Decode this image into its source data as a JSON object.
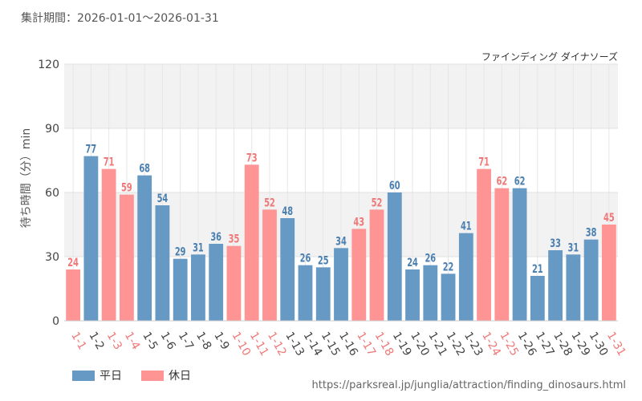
{
  "header": {
    "period_label": "集計期間：2026-01-01～2026-01-31"
  },
  "chart_data": {
    "type": "bar",
    "title": "ファインディング ダイナソーズ",
    "ylabel": "待ち時間（分）min",
    "xlabel": "",
    "ylim": [
      0,
      120
    ],
    "yticks": [
      0,
      30,
      60,
      90,
      120
    ],
    "categories": [
      "1-1",
      "1-2",
      "1-3",
      "1-4",
      "1-5",
      "1-6",
      "1-7",
      "1-8",
      "1-9",
      "1-10",
      "1-11",
      "1-12",
      "1-13",
      "1-14",
      "1-15",
      "1-16",
      "1-17",
      "1-18",
      "1-19",
      "1-20",
      "1-21",
      "1-22",
      "1-23",
      "1-24",
      "1-25",
      "1-26",
      "1-27",
      "1-28",
      "1-29",
      "1-30",
      "1-31"
    ],
    "values": [
      24,
      77,
      71,
      59,
      68,
      54,
      29,
      31,
      36,
      35,
      73,
      52,
      48,
      26,
      25,
      34,
      43,
      52,
      60,
      24,
      26,
      22,
      41,
      71,
      62,
      62,
      21,
      33,
      31,
      38,
      45
    ],
    "day_types": [
      "holiday",
      "weekday",
      "holiday",
      "holiday",
      "weekday",
      "weekday",
      "weekday",
      "weekday",
      "weekday",
      "holiday",
      "holiday",
      "holiday",
      "weekday",
      "weekday",
      "weekday",
      "weekday",
      "holiday",
      "holiday",
      "weekday",
      "weekday",
      "weekday",
      "weekday",
      "weekday",
      "holiday",
      "holiday",
      "weekday",
      "weekday",
      "weekday",
      "weekday",
      "weekday",
      "holiday"
    ],
    "series": [
      {
        "name": "平日",
        "color": "#6699c4"
      },
      {
        "name": "休日",
        "color": "#ff9494"
      }
    ],
    "legend_position": "bottom-left"
  },
  "colors": {
    "weekday": "#6699c4",
    "holiday": "#ff9494",
    "weekday_text": "#4a7fb0",
    "holiday_text": "#f07878"
  },
  "footer": {
    "source_url": "https://parksreal.jp/junglia/attraction/finding_dinosaurs.html"
  }
}
